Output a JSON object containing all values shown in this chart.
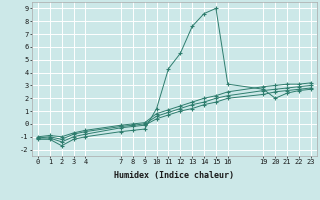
{
  "xlabel": "Humidex (Indice chaleur)",
  "background_color": "#cce8e8",
  "grid_color": "#ffffff",
  "line_color": "#2e7d6e",
  "xlim": [
    -0.5,
    23.5
  ],
  "ylim": [
    -2.5,
    9.5
  ],
  "xticks": [
    0,
    1,
    2,
    3,
    4,
    7,
    8,
    9,
    10,
    11,
    12,
    13,
    14,
    15,
    16,
    19,
    20,
    21,
    22,
    23
  ],
  "yticks": [
    -2,
    -1,
    0,
    1,
    2,
    3,
    4,
    5,
    6,
    7,
    8,
    9
  ],
  "lines": [
    {
      "x": [
        0,
        1,
        2,
        3,
        4,
        7,
        8,
        9,
        10,
        11,
        12,
        13,
        14,
        15,
        16,
        19,
        20,
        21,
        22,
        23
      ],
      "y": [
        -1.2,
        -1.2,
        -1.7,
        -1.2,
        -1.0,
        -0.6,
        -0.5,
        -0.4,
        1.2,
        4.3,
        5.5,
        7.6,
        8.6,
        9.0,
        3.1,
        2.7,
        2.0,
        2.4,
        2.6,
        2.7
      ]
    },
    {
      "x": [
        0,
        1,
        2,
        3,
        4,
        7,
        8,
        9,
        10,
        11,
        12,
        13,
        14,
        15,
        16,
        19,
        20,
        21,
        22,
        23
      ],
      "y": [
        -1.1,
        -1.1,
        -1.4,
        -1.0,
        -0.8,
        -0.3,
        -0.2,
        -0.1,
        0.4,
        0.7,
        1.0,
        1.2,
        1.5,
        1.7,
        2.0,
        2.3,
        2.5,
        2.6,
        2.7,
        2.8
      ]
    },
    {
      "x": [
        0,
        1,
        2,
        3,
        4,
        7,
        8,
        9,
        10,
        11,
        12,
        13,
        14,
        15,
        16,
        19,
        20,
        21,
        22,
        23
      ],
      "y": [
        -1.1,
        -1.0,
        -1.2,
        -0.8,
        -0.6,
        -0.2,
        -0.1,
        0.0,
        0.6,
        0.9,
        1.2,
        1.5,
        1.7,
        2.0,
        2.2,
        2.6,
        2.7,
        2.8,
        2.9,
        3.0
      ]
    },
    {
      "x": [
        0,
        1,
        2,
        3,
        4,
        7,
        8,
        9,
        10,
        11,
        12,
        13,
        14,
        15,
        16,
        19,
        20,
        21,
        22,
        23
      ],
      "y": [
        -1.0,
        -0.9,
        -1.0,
        -0.7,
        -0.5,
        -0.1,
        0.0,
        0.1,
        0.8,
        1.1,
        1.4,
        1.7,
        2.0,
        2.2,
        2.5,
        2.9,
        3.0,
        3.1,
        3.1,
        3.2
      ]
    }
  ]
}
